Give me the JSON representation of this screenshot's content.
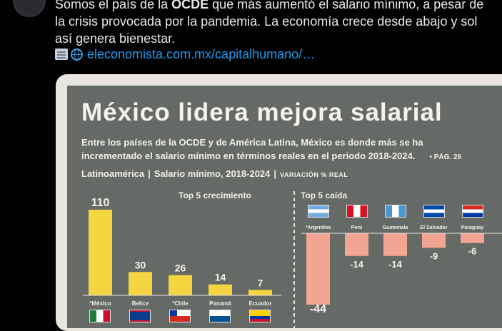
{
  "tweet": {
    "line1_pre": "Somos el país de la ",
    "line1_bold": "OCDE",
    "line1_post": " que más aumentó el salario mínimo, a pesar de",
    "line2": "la crisis provocada por la pandemia. La economía crece desde abajo y sol",
    "line3": "así genera bienestar.",
    "link_text": "eleconomista.com.mx/capitalhumano/…",
    "icons": [
      "newspaper-icon",
      "globe-icon"
    ]
  },
  "infographic": {
    "title": "México lidera mejora salarial",
    "subtitle_line1": "Entre los países de la OCDE y de América Latina, México es donde más se ha",
    "subtitle_line2": "incrementado el salario mínimo en términos reales en el periodo 2018-2024.",
    "page_ref": "• PÁG. 26",
    "header_region": "Latinoamérica",
    "header_metric": "Salario mínimo, 2018-2024",
    "header_unit": "VARIACIÓN % REAL",
    "separator": "|",
    "top_growth_label": "Top 5 crecimiento",
    "top_drop_label": "Top 5 caída",
    "colors": {
      "background": "#656a66",
      "growth_bar": "#f5d53f",
      "drop_bar": "#f3a593",
      "text": "#f1efe7"
    }
  },
  "chart_data": [
    {
      "type": "bar",
      "title": "Top 5 crecimiento",
      "categories": [
        "*México",
        "Belice",
        "*Chile",
        "Panamá",
        "Ecuador"
      ],
      "values": [
        110,
        30,
        26,
        14,
        7
      ],
      "flags": [
        "mexico",
        "belize",
        "chile",
        "panama",
        "ecuador"
      ]
    },
    {
      "type": "bar",
      "title": "Top 5 caída",
      "categories": [
        "*Argentina",
        "Perú",
        "Guatemala",
        "El Salvador",
        "Paraguay"
      ],
      "values": [
        -44,
        -14,
        -14,
        -9,
        -6
      ],
      "flags": [
        "argentina",
        "peru",
        "guatemala",
        "el-salvador",
        "paraguay"
      ]
    }
  ]
}
